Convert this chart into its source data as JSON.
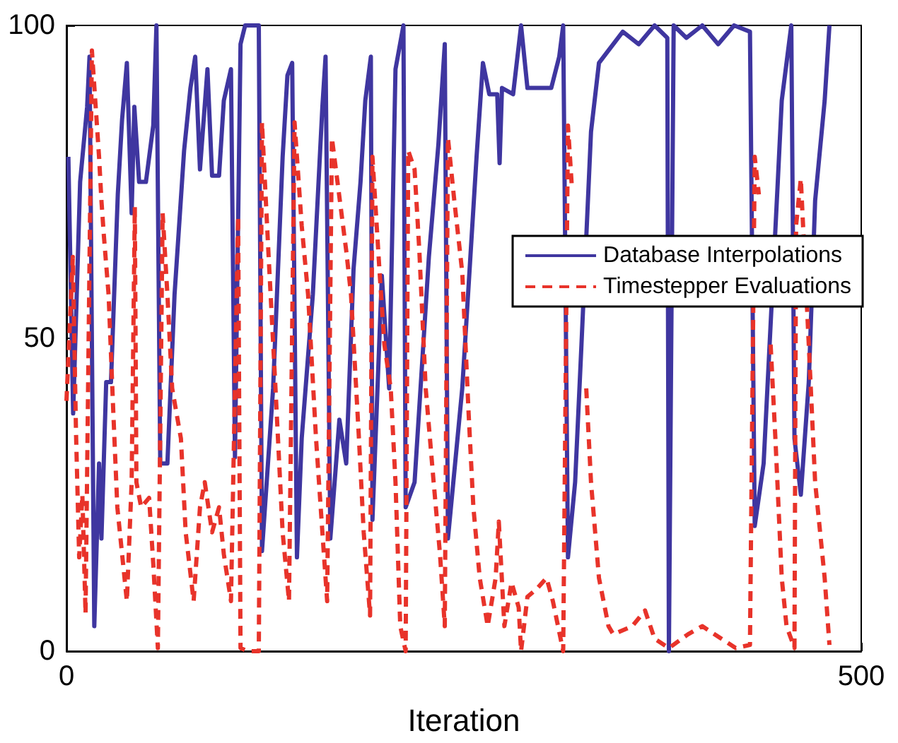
{
  "chart_data": {
    "type": "line",
    "xlabel": "Iteration",
    "xlim": [
      0,
      500
    ],
    "xticks": [
      0,
      500
    ],
    "ylim": [
      0,
      100
    ],
    "yticks": [
      0,
      50,
      100
    ],
    "legend": "right",
    "series": [
      {
        "name": "Database Interpolations",
        "color": "#3f36a0",
        "line_style": "solid",
        "x": [
          1.2,
          4.2,
          8.6,
          13,
          14.5,
          17.5,
          20.5,
          22,
          25,
          28,
          32.3,
          35,
          38,
          41,
          42.7,
          45.7,
          50,
          54.6,
          56.6,
          59,
          63.5,
          68,
          74,
          78,
          81,
          84,
          88.7,
          91.6,
          96,
          99,
          103.5,
          106,
          109.5,
          112.4,
          121,
          123,
          130,
          136,
          139,
          142,
          145,
          148,
          155,
          161,
          163,
          166,
          171.7,
          176,
          180.6,
          185,
          188,
          191.5,
          192.5,
          198.4,
          203,
          207,
          212,
          213.4,
          219,
          228,
          234,
          238,
          240,
          249,
          258,
          262,
          266,
          271,
          272.5,
          274,
          281,
          286,
          290,
          296,
          305,
          310,
          312.5,
          315.5,
          320,
          324,
          330,
          335,
          341,
          350,
          360,
          370,
          378,
          379,
          382,
          390,
          400,
          410,
          420,
          430,
          433,
          438.6,
          447.5,
          450,
          456,
          458,
          462,
          467,
          471,
          477,
          480
        ],
        "values": [
          79,
          38,
          75,
          87,
          95,
          4,
          30,
          18,
          43,
          43,
          73,
          85,
          94,
          70,
          87,
          75,
          75,
          84,
          100,
          30,
          30,
          57,
          80,
          90,
          95,
          77,
          93,
          76,
          76,
          88,
          93,
          31,
          97,
          100,
          100,
          16,
          42,
          79,
          92,
          94,
          15,
          34,
          57,
          87,
          95,
          18,
          37,
          30,
          61,
          75,
          88,
          95,
          21,
          60,
          42,
          93,
          100,
          23,
          27,
          63,
          81,
          97,
          18,
          42,
          79,
          94,
          89,
          89,
          78,
          90,
          89,
          100,
          90,
          90,
          90,
          95,
          100,
          15,
          27,
          49,
          83,
          94,
          96,
          99,
          97,
          100,
          98,
          0,
          100,
          98,
          100,
          97,
          100,
          99,
          20,
          30,
          75,
          88,
          100,
          34,
          25,
          43,
          72,
          88,
          100
        ]
      },
      {
        "name": "Timestepper Evaluations",
        "color": "#e8332a",
        "line_style": "dashed",
        "x": [
          0,
          4,
          6,
          8,
          10,
          12,
          16,
          20.5,
          22,
          23.5,
          26.5,
          29.5,
          32,
          35,
          38,
          41,
          43,
          44,
          47,
          52,
          54.6,
          57.5,
          60.5,
          63.5,
          66.5,
          72,
          75,
          80,
          84,
          87,
          91.6,
          96,
          99,
          103.5,
          108,
          109.5,
          114,
          121,
          123,
          127,
          131.5,
          136,
          140,
          143.5,
          148,
          152,
          157,
          161,
          164,
          167,
          172,
          176,
          179,
          184,
          187,
          191,
          192.5,
          197,
          200,
          204,
          207,
          210,
          213.4,
          215,
          219,
          222,
          226,
          231,
          235,
          238,
          240,
          244,
          249,
          253,
          256,
          260,
          265,
          270,
          272,
          275.5,
          280,
          284.5,
          286,
          290,
          296,
          302,
          306,
          312.5,
          315.5,
          318,
          322.5,
          327,
          330,
          335,
          341,
          344,
          356,
          364,
          370,
          379,
          391,
          400,
          412,
          421,
          430,
          433,
          435.6,
          438.6,
          443,
          446,
          450,
          453,
          458,
          459,
          462,
          467,
          471,
          477,
          480
        ],
        "values": [
          40,
          63,
          35,
          15,
          25,
          6,
          96,
          79,
          72,
          66.5,
          57,
          38,
          23,
          15.5,
          8,
          27,
          71,
          27,
          23,
          24.5,
          14,
          0.5,
          70,
          57,
          42,
          34,
          19,
          8,
          23,
          27,
          19,
          23,
          15.5,
          8,
          69.5,
          0.5,
          0,
          0,
          84.5,
          64,
          42,
          19,
          8,
          84.5,
          68,
          57,
          34,
          19,
          8,
          82,
          72,
          64,
          57,
          34,
          19,
          5.7,
          79,
          60.5,
          49,
          42,
          27,
          4,
          0,
          80,
          77,
          64,
          42,
          27,
          15.5,
          4,
          82,
          72,
          60.5,
          38,
          23,
          11.7,
          4,
          11.7,
          20.7,
          4,
          11,
          7,
          0,
          8.7,
          10,
          11.7,
          8,
          0,
          84,
          74,
          null,
          42,
          27,
          11.7,
          4,
          2.7,
          4,
          6.5,
          2,
          0.5,
          2.7,
          4,
          2,
          0.5,
          1,
          79,
          73,
          null,
          49,
          34,
          11.7,
          4,
          0.5,
          68,
          75.5,
          49,
          27,
          11.7,
          1
        ]
      }
    ]
  }
}
